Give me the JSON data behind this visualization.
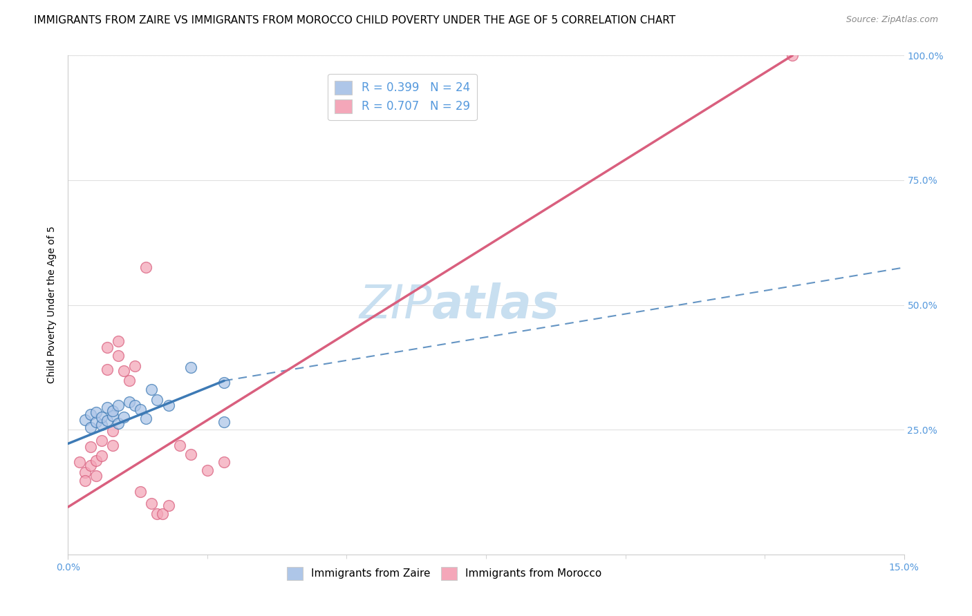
{
  "title": "IMMIGRANTS FROM ZAIRE VS IMMIGRANTS FROM MOROCCO CHILD POVERTY UNDER THE AGE OF 5 CORRELATION CHART",
  "source": "Source: ZipAtlas.com",
  "ylabel": "Child Poverty Under the Age of 5",
  "xlim": [
    0,
    0.15
  ],
  "ylim": [
    0,
    1.0
  ],
  "xtick_major": [
    0.0,
    0.15
  ],
  "xtick_major_labels": [
    "0.0%",
    "15.0%"
  ],
  "xtick_minor": [
    0.025,
    0.05,
    0.075,
    0.1,
    0.125
  ],
  "ytick_right": [
    0.25,
    0.5,
    0.75,
    1.0
  ],
  "ytick_right_labels": [
    "25.0%",
    "50.0%",
    "75.0%",
    "100.0%"
  ],
  "legend_entries": [
    {
      "label": "R = 0.399   N = 24"
    },
    {
      "label": "R = 0.707   N = 29"
    }
  ],
  "legend_bottom": [
    "Immigrants from Zaire",
    "Immigrants from Morocco"
  ],
  "watermark_zip": "ZIP",
  "watermark_atlas": "atlas",
  "zaire_scatter": [
    [
      0.003,
      0.27
    ],
    [
      0.004,
      0.28
    ],
    [
      0.004,
      0.255
    ],
    [
      0.005,
      0.265
    ],
    [
      0.005,
      0.285
    ],
    [
      0.006,
      0.26
    ],
    [
      0.006,
      0.275
    ],
    [
      0.007,
      0.295
    ],
    [
      0.007,
      0.268
    ],
    [
      0.008,
      0.278
    ],
    [
      0.008,
      0.288
    ],
    [
      0.009,
      0.262
    ],
    [
      0.009,
      0.298
    ],
    [
      0.01,
      0.275
    ],
    [
      0.011,
      0.305
    ],
    [
      0.012,
      0.298
    ],
    [
      0.013,
      0.29
    ],
    [
      0.014,
      0.272
    ],
    [
      0.015,
      0.33
    ],
    [
      0.016,
      0.31
    ],
    [
      0.018,
      0.298
    ],
    [
      0.022,
      0.375
    ],
    [
      0.028,
      0.345
    ],
    [
      0.028,
      0.265
    ]
  ],
  "morocco_scatter": [
    [
      0.002,
      0.185
    ],
    [
      0.003,
      0.165
    ],
    [
      0.003,
      0.148
    ],
    [
      0.004,
      0.215
    ],
    [
      0.004,
      0.178
    ],
    [
      0.005,
      0.188
    ],
    [
      0.005,
      0.158
    ],
    [
      0.006,
      0.228
    ],
    [
      0.006,
      0.198
    ],
    [
      0.007,
      0.37
    ],
    [
      0.007,
      0.415
    ],
    [
      0.008,
      0.248
    ],
    [
      0.008,
      0.218
    ],
    [
      0.009,
      0.428
    ],
    [
      0.009,
      0.398
    ],
    [
      0.01,
      0.368
    ],
    [
      0.011,
      0.348
    ],
    [
      0.012,
      0.378
    ],
    [
      0.013,
      0.125
    ],
    [
      0.014,
      0.575
    ],
    [
      0.015,
      0.102
    ],
    [
      0.016,
      0.082
    ],
    [
      0.017,
      0.082
    ],
    [
      0.018,
      0.098
    ],
    [
      0.02,
      0.218
    ],
    [
      0.022,
      0.2
    ],
    [
      0.025,
      0.168
    ],
    [
      0.028,
      0.185
    ],
    [
      0.13,
      1.0
    ]
  ],
  "zaire_line_x": [
    0.0,
    0.028,
    0.15
  ],
  "zaire_line_y": [
    0.222,
    0.348,
    0.575
  ],
  "morocco_line_x": [
    0.0,
    0.13
  ],
  "morocco_line_y": [
    0.095,
    1.0
  ],
  "blue_color": "#3d7ab5",
  "pink_color": "#d95f7e",
  "scatter_blue": "#aec6e8",
  "scatter_pink": "#f4a7b9",
  "watermark_color": "#c8dff0",
  "grid_color": "#e0e0e0",
  "title_fontsize": 11,
  "axis_label_fontsize": 10,
  "tick_fontsize": 10,
  "right_tick_color": "#5599dd",
  "source_color": "#888888"
}
